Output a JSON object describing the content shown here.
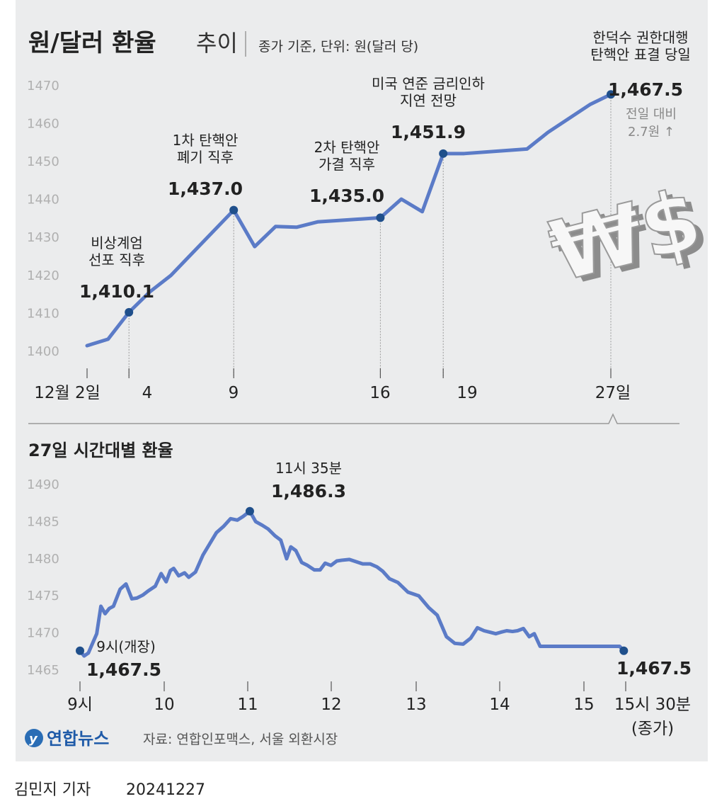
{
  "header": {
    "title": "원/달러 환율",
    "title_suffix": "추이",
    "subtitle": "종가 기준, 단위: 원(달러 당)"
  },
  "colors": {
    "line": "#5b7bc7",
    "point": "#1f4f8b",
    "background": "#ebeced",
    "text": "#222222",
    "axis_text": "#b0b0b0"
  },
  "chart_data": [
    {
      "type": "line",
      "title": "원/달러 환율 추이",
      "x_tick_labels": [
        "12월 2일",
        "4",
        "9",
        "16",
        "19",
        "27일"
      ],
      "y_ticks": [
        1400,
        1410,
        1420,
        1430,
        1440,
        1450,
        1460,
        1470
      ],
      "ylim": [
        1400,
        1470
      ],
      "grid": false,
      "series": [
        {
          "x": [
            2,
            3,
            4,
            5,
            6,
            9,
            10,
            11,
            12,
            13,
            16,
            17,
            18,
            19,
            20,
            23,
            24,
            26,
            27
          ],
          "values": [
            1401.3,
            1403.0,
            1410.1,
            1415.5,
            1419.8,
            1437.0,
            1427.4,
            1432.7,
            1432.5,
            1433.9,
            1435.0,
            1439.9,
            1436.6,
            1451.9,
            1451.9,
            1453.1,
            1457.5,
            1464.8,
            1467.5
          ]
        }
      ],
      "annotations": [
        {
          "x": 4,
          "label": "비상계엄\n선포 직후",
          "value_label": "1,410.1"
        },
        {
          "x": 9,
          "label": "1차 탄핵안\n폐기 직후",
          "value_label": "1,437.0"
        },
        {
          "x": 16,
          "label": "2차 탄핵안\n가결 직후",
          "value_label": "1,435.0"
        },
        {
          "x": 19,
          "label": "미국 연준 금리인하\n지연 전망",
          "value_label": "1,451.9"
        },
        {
          "x": 27,
          "label": "한덕수 권한대행\n탄핵안 표결 당일",
          "value_label": "1,467.5",
          "note": "전일 대비\n2.7원 ↑"
        }
      ]
    },
    {
      "type": "line",
      "title": "27일 시간대별 환율",
      "x_tick_labels": [
        "9시",
        "10",
        "11",
        "12",
        "13",
        "14",
        "15",
        "15시 30분\n(종가)"
      ],
      "y_ticks": [
        1465,
        1470,
        1475,
        1480,
        1485,
        1490
      ],
      "ylim": [
        1465,
        1490
      ],
      "grid": false,
      "series": [
        {
          "x": [
            9.0,
            9.05,
            9.1,
            9.15,
            9.2,
            9.25,
            9.3,
            9.35,
            9.4,
            9.48,
            9.55,
            9.62,
            9.68,
            9.75,
            9.82,
            9.9,
            9.97,
            10.03,
            10.08,
            10.12,
            10.18,
            10.25,
            10.3,
            10.38,
            10.47,
            10.55,
            10.63,
            10.72,
            10.8,
            10.88,
            10.95,
            11.03,
            11.1,
            11.18,
            11.25,
            11.33,
            11.4,
            11.47,
            11.52,
            11.58,
            11.65,
            11.72,
            11.8,
            11.87,
            11.93,
            12.0,
            12.07,
            12.13,
            12.22,
            12.3,
            12.38,
            12.47,
            12.55,
            12.62,
            12.7,
            12.8,
            12.92,
            13.05,
            13.17,
            13.27,
            13.38,
            13.48,
            13.58,
            13.67,
            13.75,
            13.83,
            13.9,
            13.97,
            14.03,
            14.1,
            14.17,
            14.23,
            14.3,
            14.37,
            14.43,
            14.5,
            14.6,
            14.7,
            14.83,
            14.97,
            15.08,
            15.17,
            15.25,
            15.3,
            15.38,
            15.45,
            15.5
          ],
          "values": [
            1467.5,
            1466.8,
            1467.2,
            1468.5,
            1469.8,
            1473.5,
            1472.5,
            1473.2,
            1473.5,
            1475.8,
            1476.5,
            1474.5,
            1474.6,
            1475.0,
            1475.6,
            1476.2,
            1477.9,
            1476.8,
            1478.3,
            1478.6,
            1477.6,
            1478.0,
            1477.4,
            1478.1,
            1480.4,
            1481.9,
            1483.4,
            1484.3,
            1485.3,
            1485.1,
            1485.6,
            1486.3,
            1484.9,
            1484.4,
            1483.9,
            1483.0,
            1482.4,
            1479.9,
            1481.5,
            1481.0,
            1479.4,
            1479.0,
            1478.4,
            1478.4,
            1479.3,
            1479.0,
            1479.6,
            1479.7,
            1479.8,
            1479.5,
            1479.2,
            1479.2,
            1478.8,
            1478.2,
            1477.2,
            1476.7,
            1475.4,
            1474.9,
            1473.3,
            1472.3,
            1469.4,
            1468.5,
            1468.4,
            1469.2,
            1470.6,
            1470.2,
            1470.0,
            1469.8,
            1470.0,
            1470.2,
            1470.1,
            1470.2,
            1470.5,
            1469.4,
            1469.8,
            1468.1,
            1468.1,
            1468.1,
            1468.1,
            1468.1,
            1468.1,
            1468.1,
            1468.1,
            1468.1,
            1468.1,
            1468.1,
            1467.5
          ]
        }
      ],
      "annotations": [
        {
          "x": 9.0,
          "label": "9시(개장)",
          "value_label": "1,467.5"
        },
        {
          "x": 11.03,
          "label": "11시 35분",
          "value_label": "1,486.3"
        },
        {
          "x": 15.5,
          "label": "",
          "value_label": "1,467.5"
        }
      ]
    }
  ],
  "source": {
    "logo_text": "연합뉴스",
    "text": "자료: 연합인포맥스, 서울 외환시장"
  },
  "footer": {
    "reporter": "김민지 기자",
    "date": "20241227"
  },
  "illustration": {
    "name": "won-dollar-symbols",
    "glyphs": "₩$"
  }
}
